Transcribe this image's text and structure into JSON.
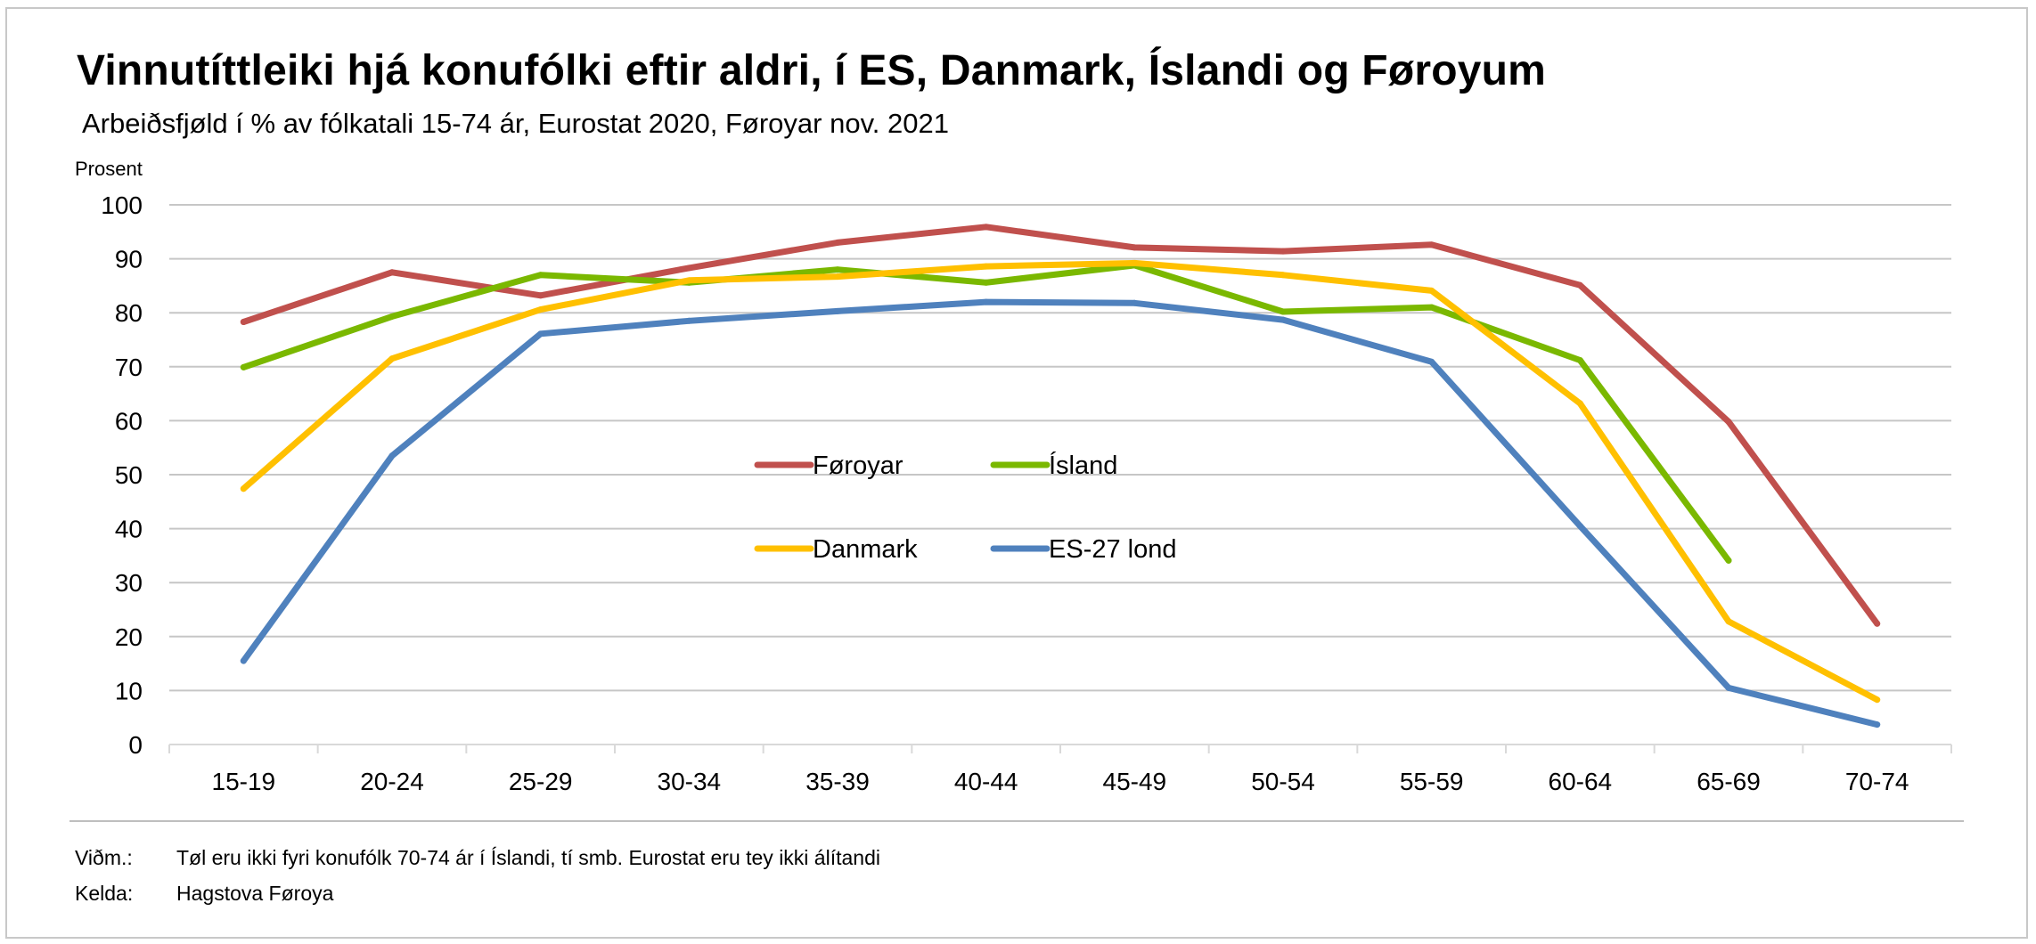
{
  "chart_data": {
    "type": "line",
    "title": "Vinnutíttleiki hjá konufólki eftir aldri, í ES, Danmark, Íslandi og Føroyum",
    "subtitle": "Arbeiðsfjøld í % av fólkatali 15-74 ár, Eurostat 2020, Føroyar nov. 2021",
    "ylabel": "Prosent",
    "xlabel": "",
    "ylim": [
      0,
      100
    ],
    "yticks": [
      0,
      10,
      20,
      30,
      40,
      50,
      60,
      70,
      80,
      90,
      100
    ],
    "grid": true,
    "categories": [
      "15-19",
      "20-24",
      "25-29",
      "30-34",
      "35-39",
      "40-44",
      "45-49",
      "50-54",
      "55-59",
      "60-64",
      "65-69",
      "70-74"
    ],
    "series": [
      {
        "name": "Føroyar",
        "color": "#C0504D",
        "values": [
          78.3,
          87.5,
          83.2,
          88.3,
          93.0,
          95.9,
          92.1,
          91.4,
          92.6,
          85.1,
          59.8,
          22.4
        ]
      },
      {
        "name": "Ísland",
        "color": "#7AB800",
        "values": [
          69.9,
          79.3,
          87.0,
          85.6,
          88.0,
          85.6,
          88.8,
          80.2,
          81.0,
          71.2,
          34.1,
          null
        ]
      },
      {
        "name": "Danmark",
        "color": "#FFC000",
        "values": [
          47.4,
          71.5,
          80.6,
          86.0,
          86.7,
          88.6,
          89.2,
          87.0,
          84.1,
          63.2,
          22.8,
          8.3
        ]
      },
      {
        "name": "ES-27 lond",
        "color": "#4F81BD",
        "values": [
          15.5,
          53.5,
          76.1,
          78.5,
          80.3,
          82.0,
          81.8,
          78.7,
          70.9,
          40.5,
          10.5,
          3.7
        ]
      }
    ],
    "legend_position": "center"
  },
  "footer": {
    "note_label": "Viðm.:",
    "note_text": "Tøl eru ikki fyri konufólk 70-74 ár í Íslandi, tí smb. Eurostat eru tey ikki álítandi",
    "source_label": "Kelda:",
    "source_text": "Hagstova Føroya"
  }
}
